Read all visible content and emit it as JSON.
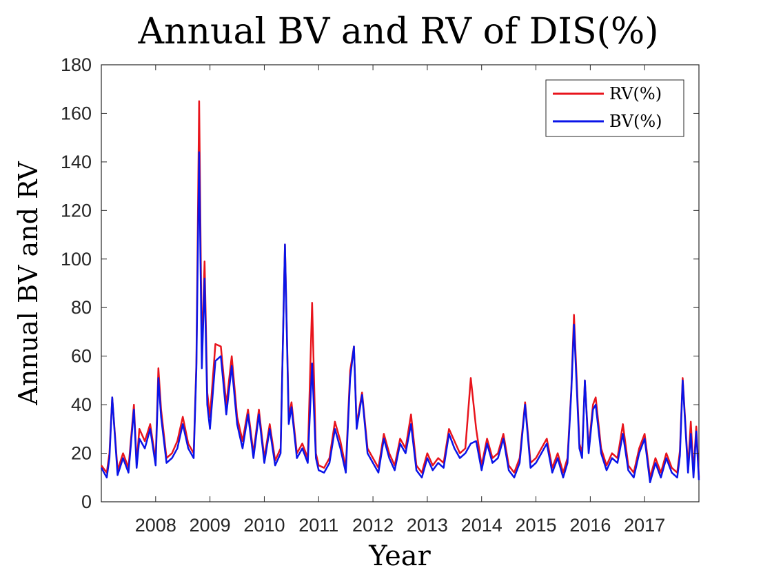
{
  "chart_data": {
    "type": "line",
    "title": "Annual BV and RV of DIS(%)",
    "xlabel": "Year",
    "ylabel": "Annual BV and RV",
    "xlim": [
      2007.0,
      2018.0
    ],
    "ylim": [
      0,
      180
    ],
    "xticks": [
      2008,
      2009,
      2010,
      2011,
      2012,
      2013,
      2014,
      2015,
      2016,
      2017
    ],
    "xtick_labels": [
      "2008",
      "2009",
      "2010",
      "2011",
      "2012",
      "2013",
      "2014",
      "2015",
      "2016",
      "2017"
    ],
    "yticks": [
      0,
      20,
      40,
      60,
      80,
      100,
      120,
      140,
      160,
      180
    ],
    "ytick_labels": [
      "0",
      "20",
      "40",
      "60",
      "80",
      "100",
      "120",
      "140",
      "160",
      "180"
    ],
    "grid": false,
    "legend_position": "top-right",
    "series": [
      {
        "name": "RV(%)",
        "color": "#e8141c",
        "x": [
          2007.0,
          2007.1,
          2007.15,
          2007.2,
          2007.3,
          2007.4,
          2007.5,
          2007.6,
          2007.65,
          2007.7,
          2007.8,
          2007.9,
          2008.0,
          2008.05,
          2008.1,
          2008.2,
          2008.3,
          2008.4,
          2008.5,
          2008.6,
          2008.7,
          2008.75,
          2008.8,
          2008.85,
          2008.9,
          2008.95,
          2009.0,
          2009.1,
          2009.2,
          2009.3,
          2009.4,
          2009.5,
          2009.6,
          2009.7,
          2009.8,
          2009.9,
          2010.0,
          2010.1,
          2010.2,
          2010.3,
          2010.38,
          2010.45,
          2010.5,
          2010.6,
          2010.7,
          2010.8,
          2010.88,
          2010.95,
          2011.0,
          2011.1,
          2011.2,
          2011.3,
          2011.4,
          2011.5,
          2011.58,
          2011.65,
          2011.7,
          2011.8,
          2011.9,
          2012.0,
          2012.1,
          2012.2,
          2012.3,
          2012.4,
          2012.5,
          2012.6,
          2012.7,
          2012.8,
          2012.9,
          2013.0,
          2013.1,
          2013.2,
          2013.3,
          2013.4,
          2013.5,
          2013.6,
          2013.7,
          2013.8,
          2013.9,
          2014.0,
          2014.1,
          2014.2,
          2014.3,
          2014.4,
          2014.5,
          2014.6,
          2014.7,
          2014.8,
          2014.9,
          2015.0,
          2015.1,
          2015.2,
          2015.3,
          2015.4,
          2015.5,
          2015.58,
          2015.65,
          2015.7,
          2015.8,
          2015.85,
          2015.9,
          2015.97,
          2016.05,
          2016.1,
          2016.2,
          2016.3,
          2016.4,
          2016.5,
          2016.6,
          2016.7,
          2016.8,
          2016.9,
          2017.0,
          2017.1,
          2017.2,
          2017.3,
          2017.4,
          2017.5,
          2017.6,
          2017.65,
          2017.7,
          2017.8,
          2017.85,
          2017.9,
          2017.95,
          2018.0
        ],
        "y": [
          15,
          12,
          20,
          43,
          13,
          20,
          14,
          40,
          16,
          30,
          25,
          32,
          17,
          55,
          38,
          18,
          20,
          25,
          35,
          24,
          20,
          57,
          165,
          60,
          99,
          45,
          35,
          65,
          64,
          40,
          60,
          35,
          25,
          38,
          20,
          38,
          18,
          32,
          17,
          22,
          106,
          35,
          41,
          20,
          24,
          18,
          82,
          20,
          15,
          14,
          18,
          33,
          25,
          14,
          54,
          64,
          32,
          45,
          22,
          18,
          14,
          28,
          20,
          15,
          26,
          22,
          36,
          15,
          12,
          20,
          15,
          18,
          16,
          30,
          25,
          20,
          22,
          51,
          30,
          15,
          26,
          18,
          20,
          28,
          15,
          12,
          18,
          41,
          16,
          18,
          22,
          26,
          14,
          20,
          12,
          18,
          46,
          77,
          24,
          20,
          50,
          22,
          40,
          43,
          22,
          15,
          20,
          18,
          32,
          15,
          12,
          22,
          28,
          10,
          18,
          12,
          20,
          14,
          12,
          21,
          51,
          14,
          33,
          12,
          31,
          10
        ]
      },
      {
        "name": "BV(%)",
        "color": "#0a14e8",
        "x": [
          2007.0,
          2007.1,
          2007.15,
          2007.2,
          2007.3,
          2007.4,
          2007.5,
          2007.6,
          2007.65,
          2007.7,
          2007.8,
          2007.9,
          2008.0,
          2008.05,
          2008.1,
          2008.2,
          2008.3,
          2008.4,
          2008.5,
          2008.6,
          2008.7,
          2008.75,
          2008.8,
          2008.85,
          2008.9,
          2008.95,
          2009.0,
          2009.1,
          2009.2,
          2009.3,
          2009.4,
          2009.5,
          2009.6,
          2009.7,
          2009.8,
          2009.9,
          2010.0,
          2010.1,
          2010.2,
          2010.3,
          2010.38,
          2010.45,
          2010.5,
          2010.6,
          2010.7,
          2010.8,
          2010.88,
          2010.95,
          2011.0,
          2011.1,
          2011.2,
          2011.3,
          2011.4,
          2011.5,
          2011.58,
          2011.65,
          2011.7,
          2011.8,
          2011.9,
          2012.0,
          2012.1,
          2012.2,
          2012.3,
          2012.4,
          2012.5,
          2012.6,
          2012.7,
          2012.8,
          2012.9,
          2013.0,
          2013.1,
          2013.2,
          2013.3,
          2013.4,
          2013.5,
          2013.6,
          2013.7,
          2013.8,
          2013.9,
          2014.0,
          2014.1,
          2014.2,
          2014.3,
          2014.4,
          2014.5,
          2014.6,
          2014.7,
          2014.8,
          2014.9,
          2015.0,
          2015.1,
          2015.2,
          2015.3,
          2015.4,
          2015.5,
          2015.58,
          2015.65,
          2015.7,
          2015.8,
          2015.85,
          2015.9,
          2015.97,
          2016.05,
          2016.1,
          2016.2,
          2016.3,
          2016.4,
          2016.5,
          2016.6,
          2016.7,
          2016.8,
          2016.9,
          2017.0,
          2017.1,
          2017.2,
          2017.3,
          2017.4,
          2017.5,
          2017.6,
          2017.65,
          2017.7,
          2017.8,
          2017.85,
          2017.9,
          2017.95,
          2018.0
        ],
        "y": [
          14,
          10,
          18,
          43,
          11,
          18,
          12,
          38,
          14,
          26,
          22,
          30,
          15,
          51,
          35,
          16,
          18,
          22,
          32,
          22,
          18,
          55,
          144,
          55,
          92,
          40,
          30,
          58,
          60,
          36,
          56,
          32,
          22,
          36,
          18,
          36,
          16,
          30,
          15,
          20,
          106,
          32,
          39,
          18,
          22,
          16,
          57,
          18,
          13,
          12,
          16,
          30,
          22,
          12,
          51,
          64,
          30,
          44,
          20,
          16,
          12,
          26,
          18,
          13,
          24,
          20,
          32,
          13,
          10,
          18,
          13,
          16,
          14,
          28,
          22,
          18,
          20,
          24,
          25,
          13,
          24,
          16,
          18,
          26,
          13,
          10,
          16,
          40,
          14,
          16,
          20,
          24,
          12,
          18,
          10,
          16,
          45,
          73,
          22,
          18,
          50,
          20,
          38,
          40,
          20,
          13,
          18,
          16,
          28,
          13,
          10,
          20,
          26,
          8,
          16,
          10,
          18,
          12,
          10,
          19,
          50,
          12,
          28,
          10,
          29,
          9
        ]
      }
    ]
  }
}
